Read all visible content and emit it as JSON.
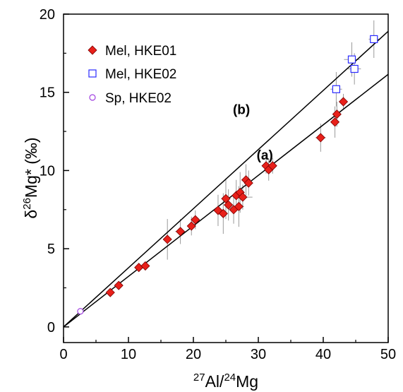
{
  "chart_data": {
    "type": "scatter",
    "xlabel_parts": [
      "27",
      "Al/",
      "24",
      "Mg"
    ],
    "ylabel_parts": [
      "δ",
      "26",
      "Mg* (‰)"
    ],
    "xlim": [
      0,
      50
    ],
    "ylim": [
      -1,
      20
    ],
    "xticks": [
      "0",
      "10",
      "20",
      "30",
      "40",
      "50"
    ],
    "yticks": [
      "0",
      "5",
      "10",
      "15",
      "20"
    ],
    "grid": false,
    "legend_position": "top-left",
    "colors": {
      "mel_hke01": "#e8201a",
      "mel_hke02": "#2a2aff",
      "sp_hke02": "#a040e0",
      "lines": "#000000",
      "errorbars": "#9a9a9a"
    },
    "series": [
      {
        "name": "Mel, HKE01",
        "marker": "diamond",
        "points": [
          {
            "x": 7.2,
            "y": 2.2,
            "xerr": 0.3,
            "yerr": 0.2
          },
          {
            "x": 8.5,
            "y": 2.65,
            "xerr": 0.3,
            "yerr": 0.2
          },
          {
            "x": 11.6,
            "y": 3.8,
            "xerr": 0.4,
            "yerr": 0.2
          },
          {
            "x": 12.6,
            "y": 3.9,
            "xerr": 0.4,
            "yerr": 0.2
          },
          {
            "x": 16.0,
            "y": 5.6,
            "xerr": 0.5,
            "yerr": 1.3
          },
          {
            "x": 18.0,
            "y": 6.1,
            "xerr": 0.8,
            "yerr": 0.8
          },
          {
            "x": 19.7,
            "y": 6.45,
            "xerr": 0.5,
            "yerr": 0.6
          },
          {
            "x": 20.3,
            "y": 6.85,
            "xerr": 0.5,
            "yerr": 0.6
          },
          {
            "x": 23.8,
            "y": 7.45,
            "xerr": 0.8,
            "yerr": 1.0
          },
          {
            "x": 24.6,
            "y": 7.25,
            "xerr": 0.6,
            "yerr": 1.3
          },
          {
            "x": 25.0,
            "y": 8.2,
            "xerr": 0.7,
            "yerr": 1.3
          },
          {
            "x": 25.4,
            "y": 7.8,
            "xerr": 0.8,
            "yerr": 1.0
          },
          {
            "x": 26.2,
            "y": 7.5,
            "xerr": 0.6,
            "yerr": 0.9
          },
          {
            "x": 26.6,
            "y": 8.4,
            "xerr": 0.7,
            "yerr": 1.0
          },
          {
            "x": 27.0,
            "y": 7.7,
            "xerr": 0.8,
            "yerr": 1.3
          },
          {
            "x": 27.2,
            "y": 8.6,
            "xerr": 0.6,
            "yerr": 1.3
          },
          {
            "x": 27.6,
            "y": 8.3,
            "xerr": 1.5,
            "yerr": 0.8
          },
          {
            "x": 28.1,
            "y": 9.4,
            "xerr": 0.7,
            "yerr": 1.0
          },
          {
            "x": 28.5,
            "y": 9.2,
            "xerr": 0.7,
            "yerr": 0.8
          },
          {
            "x": 31.2,
            "y": 10.3,
            "xerr": 0.6,
            "yerr": 0.5
          },
          {
            "x": 31.6,
            "y": 10.05,
            "xerr": 0.7,
            "yerr": 0.7
          },
          {
            "x": 32.2,
            "y": 10.3,
            "xerr": 0.6,
            "yerr": 0.5
          },
          {
            "x": 39.6,
            "y": 12.1,
            "xerr": 0.8,
            "yerr": 0.9
          },
          {
            "x": 41.8,
            "y": 13.1,
            "xerr": 0.4,
            "yerr": 1.0
          },
          {
            "x": 42.1,
            "y": 13.6,
            "xerr": 0.6,
            "yerr": 0.8
          },
          {
            "x": 43.1,
            "y": 14.4,
            "xerr": 0.4,
            "yerr": 0.5
          }
        ]
      },
      {
        "name": "Mel, HKE02",
        "marker": "open-square",
        "points": [
          {
            "x": 42.0,
            "y": 15.2,
            "xerr": 0.9,
            "yerr": 1.1
          },
          {
            "x": 44.4,
            "y": 17.1,
            "xerr": 1.2,
            "yerr": 1.1
          },
          {
            "x": 44.8,
            "y": 16.5,
            "xerr": 1.0,
            "yerr": 1.0
          },
          {
            "x": 47.8,
            "y": 18.4,
            "xerr": 0.8,
            "yerr": 1.2
          }
        ]
      },
      {
        "name": "Sp, HKE02",
        "marker": "open-circle",
        "points": [
          {
            "x": 2.6,
            "y": 1.0,
            "xerr": 0.2,
            "yerr": 0.2
          }
        ]
      }
    ],
    "lines": [
      {
        "label": "(a)",
        "x": [
          0,
          50
        ],
        "y": [
          0,
          16.15
        ],
        "label_at": {
          "x": 31.0,
          "y": 10.7
        }
      },
      {
        "label": "(b)",
        "x": [
          0,
          50
        ],
        "y": [
          0,
          18.9
        ],
        "label_at": {
          "x": 27.4,
          "y": 13.6
        }
      }
    ]
  }
}
